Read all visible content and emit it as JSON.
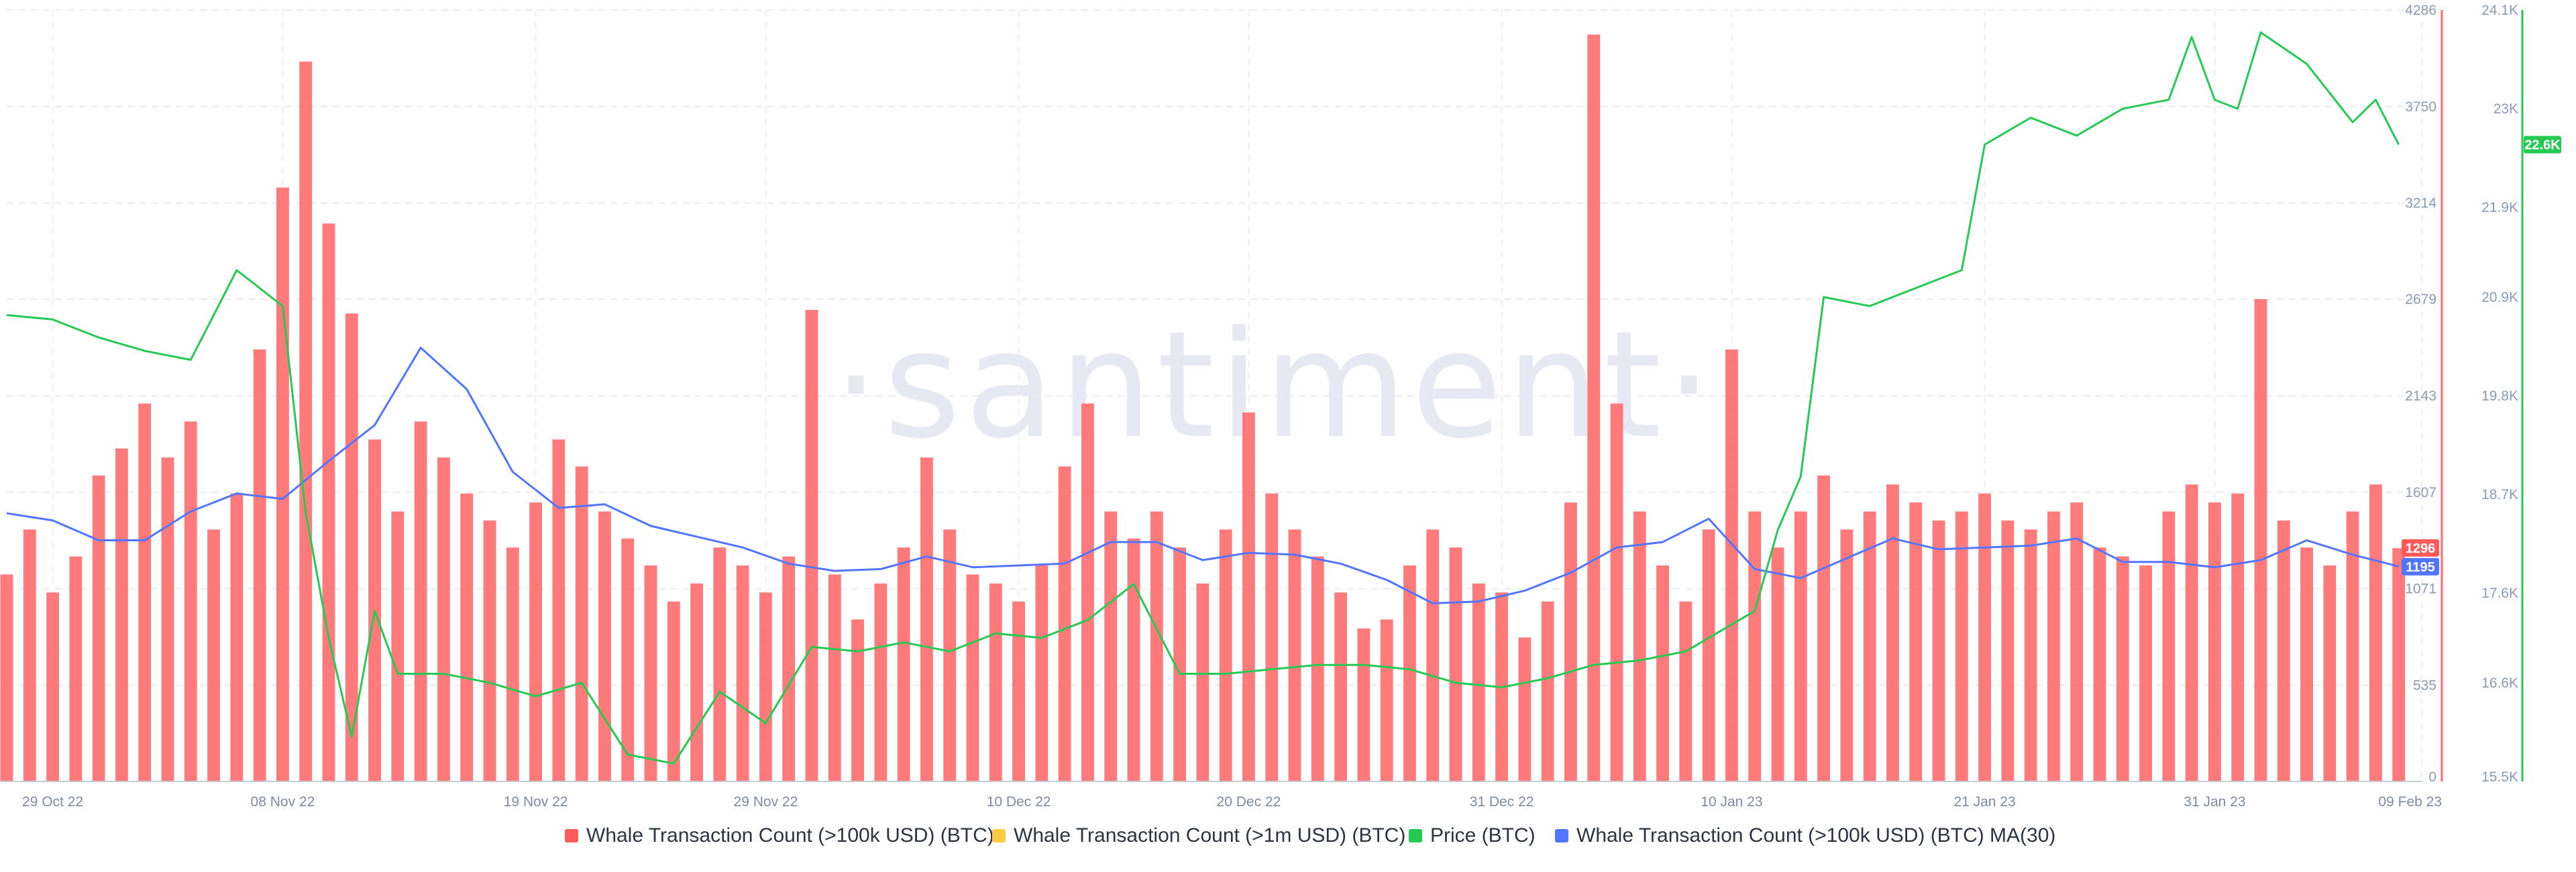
{
  "watermark": "·santiment·",
  "chart_data": {
    "type": "bar+line",
    "x_start": "2022-10-27",
    "x_end": "2023-02-09",
    "x_tick_labels": [
      "29 Oct 22",
      "08 Nov 22",
      "19 Nov 22",
      "29 Nov 22",
      "10 Dec 22",
      "20 Dec 22",
      "31 Dec 22",
      "10 Jan 23",
      "21 Jan 23",
      "31 Jan 23",
      "09 Feb 23"
    ],
    "x_tick_dates": [
      "2022-10-29",
      "2022-11-08",
      "2022-11-19",
      "2022-11-29",
      "2022-12-10",
      "2022-12-20",
      "2022-12-31",
      "2023-01-10",
      "2023-01-21",
      "2023-01-31",
      "2023-02-09"
    ],
    "left_axis": {
      "ylim": [
        0,
        4286
      ],
      "ticks": [
        0,
        535,
        1071,
        1607,
        2143,
        2679,
        3214,
        3750,
        4286
      ],
      "tick_labels": [
        "0",
        "535",
        "1071",
        "1607",
        "2143",
        "2679",
        "3214",
        "3750",
        "4286"
      ]
    },
    "right_axis": {
      "ylim": [
        15500,
        24100
      ],
      "ticks": [
        15500,
        16600,
        17600,
        18700,
        19800,
        20900,
        21900,
        23000,
        24100
      ],
      "tick_labels": [
        "15.5K",
        "16.6K",
        "17.6K",
        "18.7K",
        "19.8K",
        "20.9K",
        "21.9K",
        "23K",
        "24.1K"
      ]
    },
    "legend": [
      {
        "name": "Whale Transaction Count (>100k USD) (BTC)",
        "color": "#ff5b5b"
      },
      {
        "name": "Whale Transaction Count (>1m USD) (BTC)",
        "color": "#ffcb47"
      },
      {
        "name": "Price (BTC)",
        "color": "#26c953"
      },
      {
        "name": "Whale Transaction Count (>100k USD) (BTC) MA(30)",
        "color": "#5275ff"
      }
    ],
    "legend_position": "bottom",
    "grid": true,
    "last_values": {
      "whale_count": "1296",
      "ma30": "1195",
      "price": "22.6K"
    },
    "series": [
      {
        "name": "Whale Transaction Count (>100k USD) (BTC)",
        "kind": "bar",
        "axis": "left",
        "points": [
          [
            "2022-10-27",
            1150
          ],
          [
            "2022-10-28",
            1400
          ],
          [
            "2022-10-29",
            1050
          ],
          [
            "2022-10-30",
            1250
          ],
          [
            "2022-10-31",
            1700
          ],
          [
            "2022-11-01",
            1850
          ],
          [
            "2022-11-02",
            2100
          ],
          [
            "2022-11-03",
            1800
          ],
          [
            "2022-11-04",
            2000
          ],
          [
            "2022-11-05",
            1400
          ],
          [
            "2022-11-06",
            1600
          ],
          [
            "2022-11-07",
            2400
          ],
          [
            "2022-11-08",
            3300
          ],
          [
            "2022-11-09",
            4000
          ],
          [
            "2022-11-10",
            3100
          ],
          [
            "2022-11-11",
            2600
          ],
          [
            "2022-11-12",
            1900
          ],
          [
            "2022-11-13",
            1500
          ],
          [
            "2022-11-14",
            2000
          ],
          [
            "2022-11-15",
            1800
          ],
          [
            "2022-11-16",
            1600
          ],
          [
            "2022-11-17",
            1450
          ],
          [
            "2022-11-18",
            1300
          ],
          [
            "2022-11-19",
            1550
          ],
          [
            "2022-11-20",
            1900
          ],
          [
            "2022-11-21",
            1750
          ],
          [
            "2022-11-22",
            1500
          ],
          [
            "2022-11-23",
            1350
          ],
          [
            "2022-11-24",
            1200
          ],
          [
            "2022-11-25",
            1000
          ],
          [
            "2022-11-26",
            1100
          ],
          [
            "2022-11-27",
            1300
          ],
          [
            "2022-11-28",
            1200
          ],
          [
            "2022-11-29",
            1050
          ],
          [
            "2022-11-30",
            1250
          ],
          [
            "2022-12-01",
            2620
          ],
          [
            "2022-12-02",
            1150
          ],
          [
            "2022-12-03",
            900
          ],
          [
            "2022-12-04",
            1100
          ],
          [
            "2022-12-05",
            1300
          ],
          [
            "2022-12-06",
            1800
          ],
          [
            "2022-12-07",
            1400
          ],
          [
            "2022-12-08",
            1150
          ],
          [
            "2022-12-09",
            1100
          ],
          [
            "2022-12-10",
            1000
          ],
          [
            "2022-12-11",
            1200
          ],
          [
            "2022-12-12",
            1750
          ],
          [
            "2022-12-13",
            2100
          ],
          [
            "2022-12-14",
            1500
          ],
          [
            "2022-12-15",
            1350
          ],
          [
            "2022-12-16",
            1500
          ],
          [
            "2022-12-17",
            1300
          ],
          [
            "2022-12-18",
            1100
          ],
          [
            "2022-12-19",
            1400
          ],
          [
            "2022-12-20",
            2050
          ],
          [
            "2022-12-21",
            1600
          ],
          [
            "2022-12-22",
            1400
          ],
          [
            "2022-12-23",
            1250
          ],
          [
            "2022-12-24",
            1050
          ],
          [
            "2022-12-25",
            850
          ],
          [
            "2022-12-26",
            900
          ],
          [
            "2022-12-27",
            1200
          ],
          [
            "2022-12-28",
            1400
          ],
          [
            "2022-12-29",
            1300
          ],
          [
            "2022-12-30",
            1100
          ],
          [
            "2022-12-31",
            1050
          ],
          [
            "2023-01-01",
            800
          ],
          [
            "2023-01-02",
            1000
          ],
          [
            "2023-01-03",
            1550
          ],
          [
            "2023-01-04",
            4150
          ],
          [
            "2023-01-05",
            2100
          ],
          [
            "2023-01-06",
            1500
          ],
          [
            "2023-01-07",
            1200
          ],
          [
            "2023-01-08",
            1000
          ],
          [
            "2023-01-09",
            1400
          ],
          [
            "2023-01-10",
            2400
          ],
          [
            "2023-01-11",
            1500
          ],
          [
            "2023-01-12",
            1300
          ],
          [
            "2023-01-13",
            1500
          ],
          [
            "2023-01-14",
            1700
          ],
          [
            "2023-01-15",
            1400
          ],
          [
            "2023-01-16",
            1500
          ],
          [
            "2023-01-17",
            1650
          ],
          [
            "2023-01-18",
            1550
          ],
          [
            "2023-01-19",
            1450
          ],
          [
            "2023-01-20",
            1500
          ],
          [
            "2023-01-21",
            1600
          ],
          [
            "2023-01-22",
            1450
          ],
          [
            "2023-01-23",
            1400
          ],
          [
            "2023-01-24",
            1500
          ],
          [
            "2023-01-25",
            1550
          ],
          [
            "2023-01-26",
            1300
          ],
          [
            "2023-01-27",
            1250
          ],
          [
            "2023-01-28",
            1200
          ],
          [
            "2023-01-29",
            1500
          ],
          [
            "2023-01-30",
            1650
          ],
          [
            "2023-01-31",
            1550
          ],
          [
            "2023-02-01",
            1600
          ],
          [
            "2023-02-02",
            2680
          ],
          [
            "2023-02-03",
            1450
          ],
          [
            "2023-02-04",
            1300
          ],
          [
            "2023-02-05",
            1200
          ],
          [
            "2023-02-06",
            1500
          ],
          [
            "2023-02-07",
            1650
          ],
          [
            "2023-02-08",
            1296
          ]
        ]
      },
      {
        "name": "Whale Transaction Count (>100k USD) (BTC) MA(30)",
        "kind": "line",
        "axis": "left",
        "color": "#5275ff",
        "points": [
          [
            "2022-10-27",
            1490
          ],
          [
            "2022-10-29",
            1450
          ],
          [
            "2022-10-31",
            1340
          ],
          [
            "2022-11-02",
            1340
          ],
          [
            "2022-11-04",
            1500
          ],
          [
            "2022-11-06",
            1600
          ],
          [
            "2022-11-08",
            1570
          ],
          [
            "2022-11-10",
            1780
          ],
          [
            "2022-11-12",
            1980
          ],
          [
            "2022-11-14",
            2410
          ],
          [
            "2022-11-16",
            2180
          ],
          [
            "2022-11-18",
            1720
          ],
          [
            "2022-11-20",
            1520
          ],
          [
            "2022-11-22",
            1540
          ],
          [
            "2022-11-24",
            1420
          ],
          [
            "2022-11-26",
            1360
          ],
          [
            "2022-11-28",
            1300
          ],
          [
            "2022-11-30",
            1210
          ],
          [
            "2022-12-02",
            1170
          ],
          [
            "2022-12-04",
            1180
          ],
          [
            "2022-12-06",
            1250
          ],
          [
            "2022-12-08",
            1190
          ],
          [
            "2022-12-10",
            1200
          ],
          [
            "2022-12-12",
            1210
          ],
          [
            "2022-12-14",
            1330
          ],
          [
            "2022-12-16",
            1330
          ],
          [
            "2022-12-18",
            1230
          ],
          [
            "2022-12-20",
            1270
          ],
          [
            "2022-12-22",
            1260
          ],
          [
            "2022-12-24",
            1210
          ],
          [
            "2022-12-26",
            1120
          ],
          [
            "2022-12-28",
            990
          ],
          [
            "2022-12-30",
            1000
          ],
          [
            "2023-01-01",
            1060
          ],
          [
            "2023-01-03",
            1160
          ],
          [
            "2023-01-05",
            1300
          ],
          [
            "2023-01-07",
            1330
          ],
          [
            "2023-01-09",
            1460
          ],
          [
            "2023-01-11",
            1180
          ],
          [
            "2023-01-13",
            1130
          ],
          [
            "2023-01-15",
            1240
          ],
          [
            "2023-01-17",
            1350
          ],
          [
            "2023-01-19",
            1290
          ],
          [
            "2023-01-21",
            1300
          ],
          [
            "2023-01-23",
            1310
          ],
          [
            "2023-01-25",
            1350
          ],
          [
            "2023-01-27",
            1220
          ],
          [
            "2023-01-29",
            1220
          ],
          [
            "2023-01-31",
            1190
          ],
          [
            "2023-02-02",
            1230
          ],
          [
            "2023-02-04",
            1340
          ],
          [
            "2023-02-06",
            1260
          ],
          [
            "2023-02-08",
            1195
          ]
        ]
      },
      {
        "name": "Price (BTC)",
        "kind": "line",
        "axis": "right",
        "color": "#26c953",
        "points": [
          [
            "2022-10-27",
            20700
          ],
          [
            "2022-10-29",
            20650
          ],
          [
            "2022-10-31",
            20450
          ],
          [
            "2022-11-02",
            20300
          ],
          [
            "2022-11-04",
            20200
          ],
          [
            "2022-11-06",
            21200
          ],
          [
            "2022-11-08",
            20800
          ],
          [
            "2022-11-09",
            18500
          ],
          [
            "2022-11-10",
            17100
          ],
          [
            "2022-11-11",
            16000
          ],
          [
            "2022-11-12",
            17400
          ],
          [
            "2022-11-13",
            16700
          ],
          [
            "2022-11-15",
            16700
          ],
          [
            "2022-11-17",
            16600
          ],
          [
            "2022-11-19",
            16450
          ],
          [
            "2022-11-21",
            16600
          ],
          [
            "2022-11-22",
            16200
          ],
          [
            "2022-11-23",
            15800
          ],
          [
            "2022-11-25",
            15700
          ],
          [
            "2022-11-27",
            16500
          ],
          [
            "2022-11-29",
            16150
          ],
          [
            "2022-12-01",
            17000
          ],
          [
            "2022-12-03",
            16950
          ],
          [
            "2022-12-05",
            17050
          ],
          [
            "2022-12-07",
            16950
          ],
          [
            "2022-12-09",
            17150
          ],
          [
            "2022-12-11",
            17100
          ],
          [
            "2022-12-13",
            17300
          ],
          [
            "2022-12-15",
            17700
          ],
          [
            "2022-12-17",
            16700
          ],
          [
            "2022-12-19",
            16700
          ],
          [
            "2022-12-21",
            16750
          ],
          [
            "2022-12-23",
            16800
          ],
          [
            "2022-12-25",
            16800
          ],
          [
            "2022-12-27",
            16750
          ],
          [
            "2022-12-29",
            16600
          ],
          [
            "2022-12-31",
            16550
          ],
          [
            "2023-01-02",
            16650
          ],
          [
            "2023-01-04",
            16800
          ],
          [
            "2023-01-06",
            16850
          ],
          [
            "2023-01-08",
            16950
          ],
          [
            "2023-01-09",
            17100
          ],
          [
            "2023-01-11",
            17400
          ],
          [
            "2023-01-12",
            18300
          ],
          [
            "2023-01-13",
            18900
          ],
          [
            "2023-01-14",
            20900
          ],
          [
            "2023-01-16",
            20800
          ],
          [
            "2023-01-18",
            21000
          ],
          [
            "2023-01-20",
            21200
          ],
          [
            "2023-01-21",
            22600
          ],
          [
            "2023-01-23",
            22900
          ],
          [
            "2023-01-25",
            22700
          ],
          [
            "2023-01-27",
            23000
          ],
          [
            "2023-01-29",
            23100
          ],
          [
            "2023-01-30",
            23800
          ],
          [
            "2023-01-31",
            23100
          ],
          [
            "2023-02-01",
            23000
          ],
          [
            "2023-02-02",
            23850
          ],
          [
            "2023-02-04",
            23500
          ],
          [
            "2023-02-06",
            22850
          ],
          [
            "2023-02-07",
            23100
          ],
          [
            "2023-02-08",
            22600
          ]
        ]
      }
    ]
  }
}
